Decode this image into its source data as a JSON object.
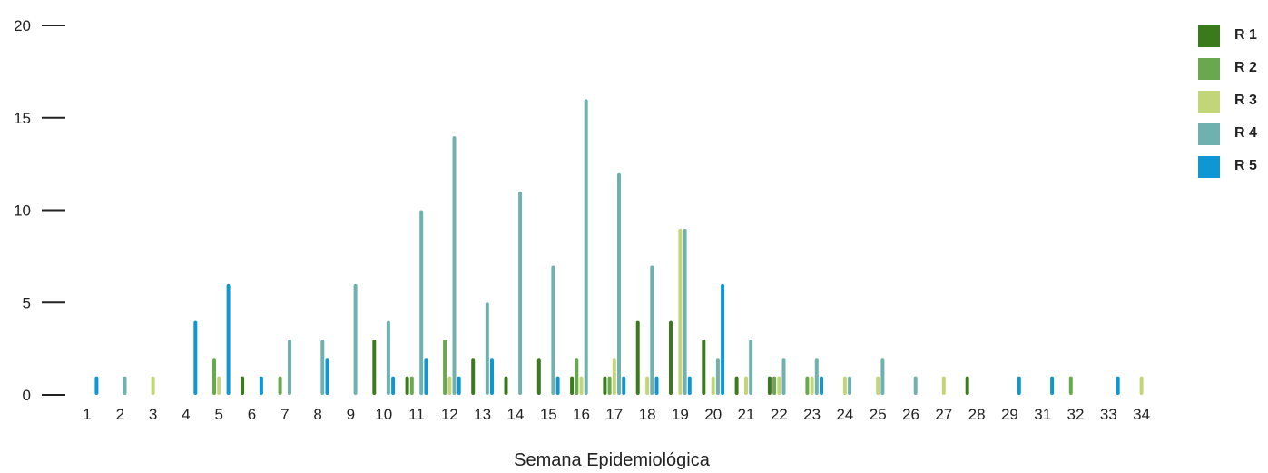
{
  "chart_data": {
    "type": "bar",
    "title": "",
    "xlabel": "Semana Epidemiológica",
    "ylabel": "",
    "ylim": [
      0,
      20
    ],
    "yticks": [
      0,
      5,
      10,
      15,
      20
    ],
    "grid": false,
    "legend_position": "top-right",
    "categories": [
      "1",
      "2",
      "3",
      "4",
      "5",
      "6",
      "7",
      "8",
      "9",
      "10",
      "11",
      "12",
      "13",
      "14",
      "15",
      "16",
      "17",
      "18",
      "19",
      "20",
      "21",
      "22",
      "23",
      "24",
      "25",
      "26",
      "27",
      "28",
      "29",
      "31",
      "32",
      "33",
      "34"
    ],
    "series": [
      {
        "name": "R 1",
        "color": "#3a7a1d",
        "values": [
          0,
          0,
          0,
          0,
          0,
          1,
          0,
          0,
          0,
          3,
          1,
          0,
          2,
          1,
          2,
          1,
          1,
          4,
          4,
          3,
          1,
          1,
          0,
          0,
          0,
          0,
          0,
          1,
          0,
          0,
          0,
          0,
          0
        ]
      },
      {
        "name": "R 2",
        "color": "#6aa84f",
        "values": [
          0,
          0,
          0,
          0,
          2,
          0,
          1,
          0,
          0,
          0,
          1,
          3,
          0,
          0,
          0,
          2,
          1,
          0,
          0,
          0,
          0,
          1,
          1,
          0,
          0,
          0,
          0,
          0,
          0,
          0,
          1,
          0,
          0
        ]
      },
      {
        "name": "R 3",
        "color": "#c3d677",
        "values": [
          0,
          0,
          1,
          0,
          1,
          0,
          0,
          0,
          0,
          0,
          0,
          1,
          0,
          0,
          0,
          1,
          2,
          1,
          9,
          1,
          1,
          1,
          1,
          1,
          1,
          0,
          1,
          0,
          0,
          0,
          0,
          0,
          1
        ]
      },
      {
        "name": "R 4",
        "color": "#6fb1ae",
        "values": [
          0,
          1,
          0,
          0,
          0,
          0,
          3,
          3,
          6,
          4,
          10,
          14,
          5,
          11,
          7,
          16,
          12,
          7,
          9,
          2,
          3,
          2,
          2,
          1,
          2,
          1,
          0,
          0,
          0,
          0,
          0,
          0,
          0
        ]
      },
      {
        "name": "R 5",
        "color": "#0f97d4",
        "values": [
          1,
          0,
          0,
          4,
          6,
          1,
          0,
          2,
          0,
          1,
          2,
          1,
          2,
          0,
          1,
          0,
          1,
          1,
          1,
          6,
          0,
          0,
          1,
          0,
          0,
          0,
          0,
          0,
          1,
          1,
          0,
          1,
          0
        ]
      }
    ]
  }
}
